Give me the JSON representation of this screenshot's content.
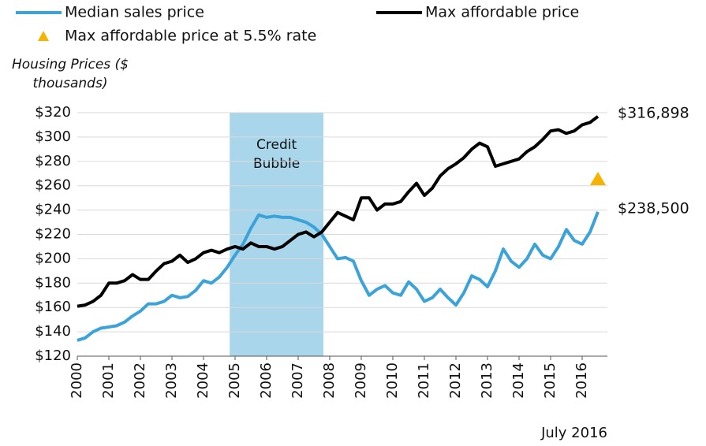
{
  "chart_data": {
    "type": "line",
    "ylabel": "Housing Prices ($ thousands)",
    "note": "July 2016",
    "x": [
      2000,
      2000.25,
      2000.5,
      2000.75,
      2001,
      2001.25,
      2001.5,
      2001.75,
      2002,
      2002.25,
      2002.5,
      2002.75,
      2003,
      2003.25,
      2003.5,
      2003.75,
      2004,
      2004.25,
      2004.5,
      2004.75,
      2005,
      2005.25,
      2005.5,
      2005.75,
      2006,
      2006.25,
      2006.5,
      2006.75,
      2007,
      2007.25,
      2007.5,
      2007.75,
      2008,
      2008.25,
      2008.5,
      2008.75,
      2009,
      2009.25,
      2009.5,
      2009.75,
      2010,
      2010.25,
      2010.5,
      2010.75,
      2011,
      2011.25,
      2011.5,
      2011.75,
      2012,
      2012.25,
      2012.5,
      2012.75,
      2013,
      2013.25,
      2013.5,
      2013.75,
      2014,
      2014.25,
      2014.5,
      2014.75,
      2015,
      2015.25,
      2015.5,
      2015.75,
      2016,
      2016.25,
      2016.5
    ],
    "series": [
      {
        "name": "Median sales price",
        "color": "#3ba3d8",
        "end_label": "$238,500",
        "values": [
          133,
          135,
          140,
          143,
          144,
          145,
          148,
          153,
          157,
          163,
          163,
          165,
          170,
          168,
          169,
          174,
          182,
          180,
          185,
          193,
          203,
          212,
          225,
          236,
          234,
          235,
          234,
          234,
          232,
          230,
          226,
          220,
          210,
          200,
          201,
          198,
          182,
          170,
          175,
          178,
          172,
          170,
          181,
          175,
          165,
          168,
          175,
          168,
          162,
          172,
          186,
          183,
          177,
          190,
          208,
          198,
          193,
          200,
          212,
          203,
          200,
          210,
          224,
          215,
          212,
          222,
          238.5
        ]
      },
      {
        "name": "Max affordable price",
        "color": "#000000",
        "end_label": "$316,898",
        "values": [
          161,
          162,
          165,
          170,
          180,
          180,
          182,
          187,
          183,
          183,
          190,
          196,
          198,
          203,
          197,
          200,
          205,
          207,
          205,
          208,
          210,
          208,
          213,
          210,
          210,
          208,
          210,
          215,
          220,
          222,
          218,
          222,
          230,
          238,
          235,
          232,
          250,
          250,
          240,
          245,
          245,
          247,
          255,
          262,
          252,
          258,
          268,
          274,
          278,
          283,
          290,
          295,
          292,
          276,
          278,
          280,
          282,
          288,
          292,
          298,
          305,
          306,
          303,
          305,
          310,
          312,
          316.898
        ]
      }
    ],
    "point": {
      "name": "Max affordable price at 5.5% rate",
      "color": "#f5b400",
      "x": 2016.5,
      "value": 265.6
    },
    "shaded_region": {
      "xlim": [
        2004.83,
        2007.8
      ],
      "color": "#a9d6ea",
      "label": [
        "Credit",
        "Bubble"
      ]
    },
    "xlim": [
      2000,
      2016.8
    ],
    "xticks": [
      2000,
      2001,
      2002,
      2003,
      2004,
      2005,
      2006,
      2007,
      2008,
      2009,
      2010,
      2011,
      2012,
      2013,
      2014,
      2015,
      2016
    ],
    "ylim": [
      120,
      320
    ],
    "yticks": [
      {
        "value": 120,
        "label": "$120"
      },
      {
        "value": 140,
        "label": "$140"
      },
      {
        "value": 160,
        "label": "$160"
      },
      {
        "value": 180,
        "label": "$180"
      },
      {
        "value": 200,
        "label": "$200"
      },
      {
        "value": 220,
        "label": "$220"
      },
      {
        "value": 240,
        "label": "$240"
      },
      {
        "value": 260,
        "label": "$260"
      },
      {
        "value": 280,
        "label": "$280"
      },
      {
        "value": 300,
        "label": "$300"
      },
      {
        "value": 320,
        "label": "$320"
      }
    ],
    "grid": true
  }
}
